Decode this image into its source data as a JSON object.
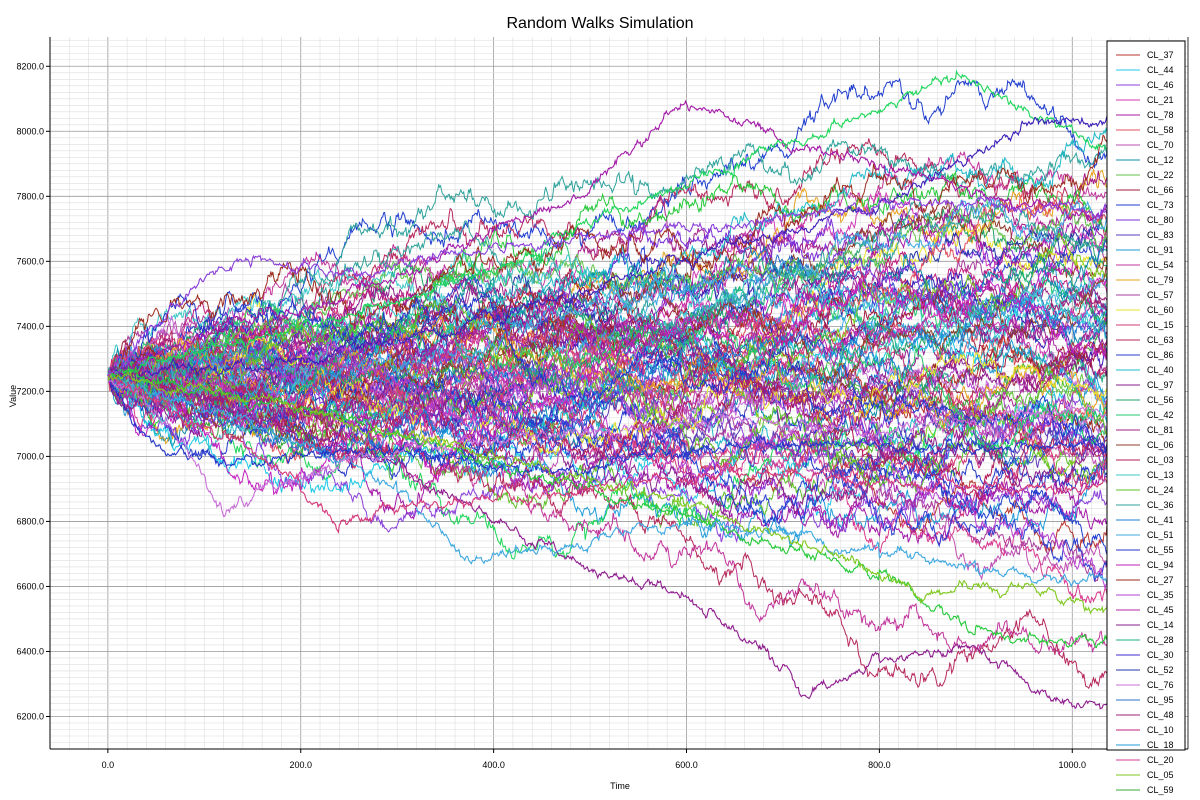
{
  "chart_data": {
    "type": "line",
    "title": "Random Walks Simulation",
    "xlabel": "Time",
    "ylabel": "Value",
    "xlim": [
      -60,
      1120
    ],
    "ylim": [
      6100,
      8290
    ],
    "x_ticks": [
      "0.0",
      "200.0",
      "400.0",
      "600.0",
      "800.0",
      "1000.0"
    ],
    "x_tick_values": [
      0,
      200,
      400,
      600,
      800,
      1000
    ],
    "y_ticks": [
      "6200.0",
      "6400.0",
      "6600.0",
      "6800.0",
      "7000.0",
      "7200.0",
      "7400.0",
      "7600.0",
      "7800.0",
      "8000.0",
      "8200.0"
    ],
    "y_tick_values": [
      6200,
      6400,
      6600,
      6800,
      7000,
      7200,
      7400,
      7600,
      7800,
      8000,
      8200
    ],
    "grid": true,
    "minor_grid": true,
    "legend_position": "right",
    "start_value": 7250,
    "time_steps": 1100,
    "step_sd": 10.5,
    "legend": [
      "CL_37",
      "CL_44",
      "CL_46",
      "CL_21",
      "CL_78",
      "CL_58",
      "CL_70",
      "CL_12",
      "CL_22",
      "CL_66",
      "CL_73",
      "CL_80",
      "CL_83",
      "CL_91",
      "CL_54",
      "CL_79",
      "CL_57",
      "CL_60",
      "CL_15",
      "CL_63",
      "CL_86",
      "CL_40",
      "CL_97",
      "CL_56",
      "CL_42",
      "CL_81",
      "CL_06",
      "CL_03",
      "CL_13",
      "CL_24",
      "CL_36",
      "CL_41",
      "CL_51",
      "CL_55",
      "CL_94",
      "CL_27",
      "CL_35",
      "CL_45",
      "CL_14",
      "CL_28",
      "CL_30",
      "CL_52",
      "CL_76",
      "CL_95",
      "CL_48",
      "CL_10",
      "CL_18",
      "CL_20",
      "CL_05",
      "CL_59"
    ],
    "series_colors": [
      "#b8362e",
      "#1ec9e6",
      "#8b3fd9",
      "#d13ab5",
      "#a319a8",
      "#e0505e",
      "#bf4fb2",
      "#0f8ca8",
      "#63c24a",
      "#a11c3b",
      "#1f3ecf",
      "#7a2fd6",
      "#5c3bb8",
      "#1c9ad1",
      "#c2349c",
      "#e6a21e",
      "#a83c9c",
      "#e8e12a",
      "#d4387a",
      "#b7285d",
      "#2a3fd1",
      "#1eb8c9",
      "#8e1c8e",
      "#20a36a",
      "#26c971",
      "#a3208a",
      "#8f3b2a",
      "#b31f5a",
      "#3fc9c9",
      "#5fbf2a",
      "#2fa39c",
      "#1f7fd1",
      "#3fa8e0",
      "#2436c9",
      "#c21fbf",
      "#9c2a1e",
      "#b33fd1",
      "#b02aa3",
      "#8a1f8a",
      "#1fb08a",
      "#3c2ad1",
      "#2236a8",
      "#c870d8",
      "#2a6fc9",
      "#9c1f7a",
      "#c21f7f",
      "#1f9cd8",
      "#d93a8f",
      "#7fc91f",
      "#3aa83a"
    ],
    "highlight_paths": [
      {
        "color": "#a319a8",
        "points": [
          [
            0,
            7250
          ],
          [
            100,
            7380
          ],
          [
            200,
            7450
          ],
          [
            300,
            7560
          ],
          [
            400,
            7700
          ],
          [
            500,
            7820
          ],
          [
            600,
            8100
          ],
          [
            700,
            7960
          ],
          [
            800,
            7900
          ],
          [
            900,
            7820
          ],
          [
            1000,
            7740
          ],
          [
            1100,
            7720
          ]
        ]
      },
      {
        "color": "#1ed65a",
        "points": [
          [
            0,
            7250
          ],
          [
            150,
            7360
          ],
          [
            300,
            7470
          ],
          [
            450,
            7640
          ],
          [
            550,
            7780
          ],
          [
            650,
            7900
          ],
          [
            750,
            8010
          ],
          [
            880,
            8180
          ],
          [
            950,
            8060
          ],
          [
            1050,
            7930
          ],
          [
            1100,
            7900
          ]
        ]
      },
      {
        "color": "#3c1fb8",
        "points": [
          [
            0,
            7250
          ],
          [
            200,
            7300
          ],
          [
            400,
            7420
          ],
          [
            600,
            7600
          ],
          [
            800,
            7780
          ],
          [
            950,
            8020
          ],
          [
            1050,
            8040
          ],
          [
            1100,
            8150
          ]
        ]
      },
      {
        "color": "#8e1c8e",
        "points": [
          [
            0,
            7250
          ],
          [
            100,
            7180
          ],
          [
            200,
            7080
          ],
          [
            300,
            6980
          ],
          [
            400,
            6800
          ],
          [
            500,
            6650
          ],
          [
            600,
            6570
          ],
          [
            700,
            6350
          ],
          [
            720,
            6260
          ],
          [
            800,
            6380
          ],
          [
            900,
            6420
          ],
          [
            1000,
            6230
          ],
          [
            1100,
            6260
          ]
        ]
      },
      {
        "color": "#26c93a",
        "points": [
          [
            0,
            7250
          ],
          [
            200,
            7150
          ],
          [
            400,
            6980
          ],
          [
            600,
            6820
          ],
          [
            800,
            6640
          ],
          [
            900,
            6470
          ],
          [
            1000,
            6420
          ],
          [
            1100,
            6480
          ]
        ]
      },
      {
        "color": "#3fa8e0",
        "points": [
          [
            0,
            7250
          ],
          [
            150,
            7100
          ],
          [
            300,
            6900
          ],
          [
            370,
            6680
          ],
          [
            450,
            6720
          ],
          [
            600,
            6800
          ],
          [
            700,
            6760
          ],
          [
            800,
            6700
          ],
          [
            900,
            6650
          ],
          [
            1000,
            6600
          ],
          [
            1100,
            6640
          ]
        ]
      },
      {
        "color": "#2436c9",
        "points": [
          [
            0,
            7250
          ],
          [
            40,
            7060
          ],
          [
            80,
            7000
          ],
          [
            150,
            6980
          ],
          [
            250,
            7020
          ],
          [
            350,
            7000
          ],
          [
            450,
            6950
          ],
          [
            550,
            7000
          ],
          [
            700,
            7050
          ],
          [
            900,
            7020
          ],
          [
            1100,
            7060
          ]
        ]
      },
      {
        "color": "#c870d8",
        "points": [
          [
            0,
            7250
          ],
          [
            60,
            7120
          ],
          [
            120,
            6820
          ],
          [
            160,
            6900
          ],
          [
            250,
            7000
          ],
          [
            400,
            7050
          ],
          [
            600,
            7100
          ],
          [
            800,
            7080
          ],
          [
            1000,
            7150
          ],
          [
            1100,
            7120
          ]
        ]
      },
      {
        "color": "#d4387a",
        "points": [
          [
            0,
            7250
          ],
          [
            100,
            7100
          ],
          [
            200,
            6900
          ],
          [
            240,
            6780
          ],
          [
            320,
            6850
          ],
          [
            500,
            6900
          ],
          [
            700,
            6950
          ],
          [
            900,
            6900
          ],
          [
            1100,
            6920
          ]
        ]
      },
      {
        "color": "#7fc91f",
        "points": [
          [
            0,
            7250
          ],
          [
            200,
            7150
          ],
          [
            400,
            7000
          ],
          [
            600,
            6850
          ],
          [
            750,
            6700
          ],
          [
            850,
            6580
          ],
          [
            950,
            6600
          ],
          [
            1050,
            6500
          ],
          [
            1100,
            6520
          ]
        ]
      },
      {
        "color": "#8b3fd9",
        "points": [
          [
            0,
            7250
          ],
          [
            50,
            7400
          ],
          [
            100,
            7550
          ],
          [
            150,
            7600
          ],
          [
            250,
            7560
          ],
          [
            400,
            7650
          ],
          [
            600,
            7700
          ],
          [
            800,
            7780
          ],
          [
            1000,
            7760
          ],
          [
            1100,
            7780
          ]
        ]
      }
    ]
  }
}
